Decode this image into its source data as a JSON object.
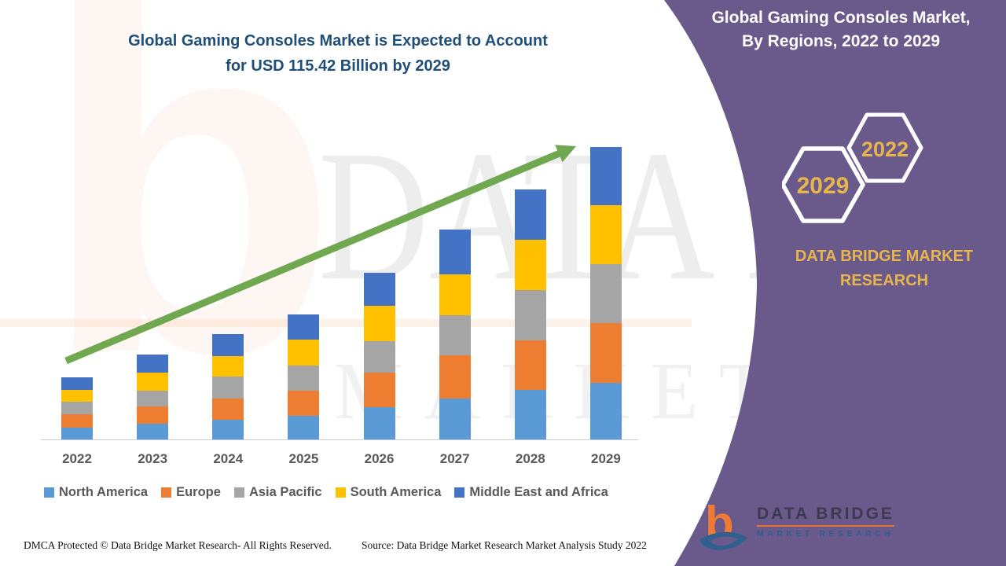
{
  "page": {
    "title_line1": "Global Gaming Consoles Market is Expected to Account",
    "title_line2": "for USD 115.42 Billion by 2029",
    "footer_left": "DMCA Protected © Data Bridge Market Research- All Rights Reserved.",
    "footer_source": "Source: Data Bridge Market Research Market Analysis Study 2022"
  },
  "side_panel": {
    "title_line1": "Global Gaming Consoles Market,",
    "title_line2": "By Regions, 2022 to 2029",
    "hexagon_back_year": "2029",
    "hexagon_front_year": "2022",
    "brand_line1": "DATA BRIDGE MARKET",
    "brand_line2": "RESEARCH",
    "panel_color": "#6a5a8c",
    "accent_gold": "#e8b54b"
  },
  "logo": {
    "glyph": "b",
    "name": "DATA BRIDGE",
    "sub_name": "MARKET RESEARCH"
  },
  "watermarks": {
    "ghost_letter": "b",
    "big_text": "DATA BRIDGE",
    "sub_text": "MARKET RESEARCH"
  },
  "chart_data": {
    "type": "bar",
    "stacked": true,
    "title": "Global Gaming Consoles Market is Expected to Account for USD 115.42 Billion by 2029",
    "unit": "USD Billion",
    "y_axis_visible": false,
    "grid": false,
    "legend_position": "bottom",
    "trend_arrow": {
      "present": true,
      "color": "#6fa84e"
    },
    "categories": [
      "2022",
      "2023",
      "2024",
      "2025",
      "2026",
      "2027",
      "2028",
      "2029"
    ],
    "series": [
      {
        "name": "North America",
        "color": "#5b9bd5",
        "values": [
          4.7,
          6.2,
          7.9,
          9.4,
          12.7,
          16.2,
          19.7,
          22.3
        ]
      },
      {
        "name": "Europe",
        "color": "#ed7d31",
        "values": [
          5.2,
          6.8,
          8.3,
          9.8,
          13.6,
          16.9,
          19.3,
          23.8
        ]
      },
      {
        "name": "Asia Pacific",
        "color": "#a5a5a5",
        "values": [
          4.9,
          6.2,
          8.6,
          9.9,
          12.4,
          15.9,
          20.1,
          23.0
        ]
      },
      {
        "name": "South America",
        "color": "#ffc000",
        "values": [
          4.7,
          7.1,
          8.2,
          10.3,
          14.0,
          16.3,
          19.8,
          23.3
        ]
      },
      {
        "name": "Middle East and Africa",
        "color": "#4472c4",
        "values": [
          5.0,
          7.1,
          8.5,
          10.1,
          13.1,
          17.5,
          19.9,
          23.02
        ]
      }
    ],
    "totals_estimated": [
      24.5,
      33.4,
      41.5,
      49.5,
      65.8,
      82.8,
      98.8,
      115.42
    ]
  }
}
